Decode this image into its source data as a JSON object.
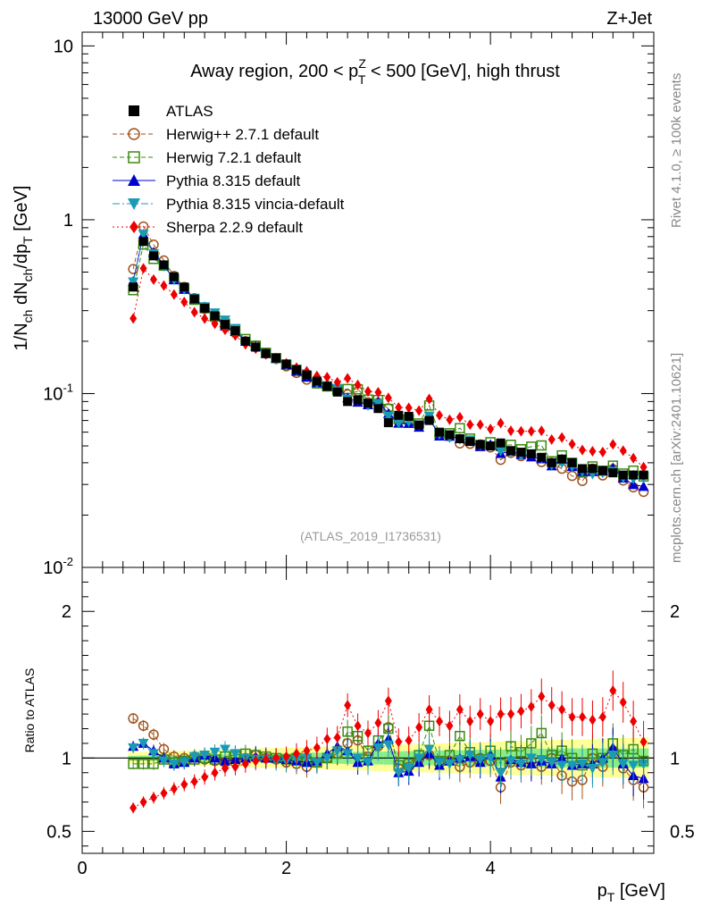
{
  "header": {
    "left": "13000 GeV pp",
    "right": "Z+Jet"
  },
  "side_text": {
    "rivet": "Rivet 4.1.0, ≥ 100k events",
    "mcplots": "mcplots.cern.ch [arXiv:2401.10621]"
  },
  "chart_data": {
    "type": "scatter",
    "title": "Away region, 200 < pTZ < 500 [GeV], high thrust",
    "title_parts": {
      "before": "Away region, 200 < p",
      "sup": "Z",
      "sub": "T",
      "after": " < 500 [GeV], high thrust"
    },
    "analysis_label": "(ATLAS_2019_I1736531)",
    "xlabel": "p_T [GeV]",
    "xlabel_parts": {
      "main": "p",
      "sub": "T",
      "unit": " [GeV]"
    },
    "ylabel": "1/N_ch dN_ch/dp_T [GeV]",
    "ylabel_parts": {
      "a": "1/N",
      "a_sub": "ch",
      "b": " dN",
      "b_sub": "ch",
      "c": "/dp",
      "c_sub": "T",
      "d": " [GeV]"
    },
    "ratio_ylabel": "Ratio to ATLAS",
    "xlim": [
      0,
      5.6
    ],
    "ylim": [
      0.01,
      12
    ],
    "ratio_ylim": [
      0.35,
      2.3
    ],
    "yscale": "log",
    "x_ticks": [
      "0",
      "2",
      "4"
    ],
    "y_ticks": {
      "base": "10",
      "labels": [
        "10",
        "1"
      ],
      "exp_labels": [
        "-1",
        "-2"
      ]
    },
    "ratio_ticks": [
      "2",
      "1",
      "0.5"
    ],
    "legend_position": "top-left",
    "x": [
      0.5,
      0.6,
      0.7,
      0.8,
      0.9,
      1.0,
      1.1,
      1.2,
      1.3,
      1.4,
      1.5,
      1.6,
      1.7,
      1.8,
      1.9,
      2.0,
      2.1,
      2.2,
      2.3,
      2.4,
      2.5,
      2.6,
      2.7,
      2.8,
      2.9,
      3.0,
      3.1,
      3.2,
      3.3,
      3.4,
      3.5,
      3.6,
      3.7,
      3.8,
      3.9,
      4.0,
      4.1,
      4.2,
      4.3,
      4.4,
      4.5,
      4.6,
      4.7,
      4.8,
      4.9,
      5.0,
      5.1,
      5.2,
      5.3,
      5.4,
      5.5
    ],
    "atlas_values": [
      0.41,
      0.75,
      0.62,
      0.55,
      0.47,
      0.41,
      0.35,
      0.31,
      0.28,
      0.25,
      0.23,
      0.2,
      0.185,
      0.17,
      0.16,
      0.148,
      0.137,
      0.128,
      0.118,
      0.11,
      0.102,
      0.09,
      0.092,
      0.088,
      0.082,
      0.068,
      0.075,
      0.074,
      0.066,
      0.07,
      0.06,
      0.058,
      0.055,
      0.053,
      0.051,
      0.05,
      0.052,
      0.047,
      0.046,
      0.045,
      0.043,
      0.04,
      0.042,
      0.04,
      0.037,
      0.037,
      0.036,
      0.035,
      0.034,
      0.034,
      0.034
    ],
    "series": [
      {
        "name": "ATLAS",
        "color": "#000000",
        "marker": "square",
        "values": null
      },
      {
        "name": "Herwig++ 2.7.1 default",
        "color": "#a0521a",
        "marker": "circle-open",
        "line": "dashed",
        "ratio": [
          1.27,
          1.22,
          1.16,
          1.06,
          1.01,
          1.0,
          1.01,
          0.99,
          0.98,
          0.97,
          0.97,
          1.0,
          1.02,
          1.0,
          0.99,
          0.97,
          0.96,
          0.94,
          0.97,
          1.0,
          1.03,
          1.1,
          1.12,
          1.01,
          1.08,
          1.21,
          0.93,
          0.94,
          0.99,
          1.02,
          0.96,
          0.98,
          0.94,
          0.97,
          1.0,
          0.98,
          0.8,
          0.97,
          0.95,
          0.98,
          0.94,
          1.0,
          0.88,
          0.84,
          0.85,
          1.0,
          0.94,
          1.05,
          0.93,
          0.85,
          0.8
        ]
      },
      {
        "name": "Herwig 7.2.1 default",
        "color": "#3a8a10",
        "marker": "square-open",
        "line": "dashed",
        "ratio": [
          0.96,
          0.96,
          0.96,
          0.99,
          0.97,
          0.98,
          0.99,
          1.0,
          0.99,
          1.01,
          1.02,
          1.03,
          1.02,
          1.01,
          1.0,
          0.99,
          1.0,
          0.98,
          0.97,
          1.0,
          1.03,
          1.18,
          1.15,
          1.05,
          1.12,
          1.2,
          0.95,
          0.96,
          1.02,
          1.22,
          0.98,
          1.02,
          1.15,
          1.04,
          0.99,
          1.05,
          0.96,
          1.08,
          1.04,
          1.1,
          1.17,
          1.02,
          1.05,
          1.0,
          0.95,
          1.03,
          1.0,
          1.1,
          1.02,
          1.06,
          0.98
        ]
      },
      {
        "name": "Pythia 8.315 default",
        "color": "#0000cc",
        "marker": "triangle-up",
        "line": "solid",
        "ratio": [
          1.08,
          1.1,
          1.05,
          1.0,
          0.96,
          0.97,
          1.0,
          1.02,
          1.0,
          0.98,
          0.99,
          1.0,
          1.01,
          1.0,
          1.0,
          0.99,
          0.98,
          0.97,
          0.98,
          1.03,
          1.08,
          1.05,
          0.97,
          0.98,
          1.1,
          1.13,
          0.9,
          0.91,
          0.97,
          1.03,
          0.95,
          0.98,
          1.0,
          1.01,
          0.97,
          1.02,
          0.87,
          0.99,
          0.97,
          0.96,
          0.98,
          0.96,
          1.0,
          0.95,
          0.96,
          0.96,
          1.0,
          1.07,
          0.96,
          0.88,
          0.86
        ]
      },
      {
        "name": "Pythia 8.315 vincia-default",
        "color": "#1a9bb3",
        "marker": "triangle-down",
        "line": "dashdot",
        "ratio": [
          1.07,
          1.1,
          1.03,
          0.98,
          0.96,
          0.97,
          1.01,
          1.02,
          1.04,
          1.06,
          1.03,
          1.0,
          0.99,
          0.99,
          0.98,
          0.98,
          0.99,
          1.0,
          0.97,
          1.0,
          1.05,
          1.03,
          1.0,
          0.97,
          1.07,
          1.09,
          0.9,
          0.93,
          1.0,
          1.06,
          0.97,
          0.96,
          0.99,
          1.02,
          0.99,
          1.0,
          0.9,
          0.98,
          0.96,
          1.0,
          0.99,
          0.97,
          0.95,
          0.95,
          0.96,
          0.93,
          0.97,
          1.02,
          0.96,
          0.95,
          0.96
        ]
      },
      {
        "name": "Sherpa 2.2.9 default",
        "color": "#ee0000",
        "marker": "diamond",
        "line": "dotted",
        "ratio": [
          0.66,
          0.7,
          0.73,
          0.76,
          0.79,
          0.82,
          0.84,
          0.87,
          0.9,
          0.93,
          0.94,
          0.96,
          0.98,
          0.99,
          1.0,
          1.01,
          1.03,
          1.05,
          1.07,
          1.13,
          1.14,
          1.36,
          1.22,
          1.17,
          1.24,
          1.39,
          1.11,
          1.12,
          1.21,
          1.33,
          1.25,
          1.22,
          1.33,
          1.25,
          1.3,
          1.25,
          1.3,
          1.3,
          1.32,
          1.35,
          1.42,
          1.36,
          1.33,
          1.28,
          1.28,
          1.26,
          1.28,
          1.46,
          1.38,
          1.25,
          1.11
        ]
      }
    ]
  }
}
